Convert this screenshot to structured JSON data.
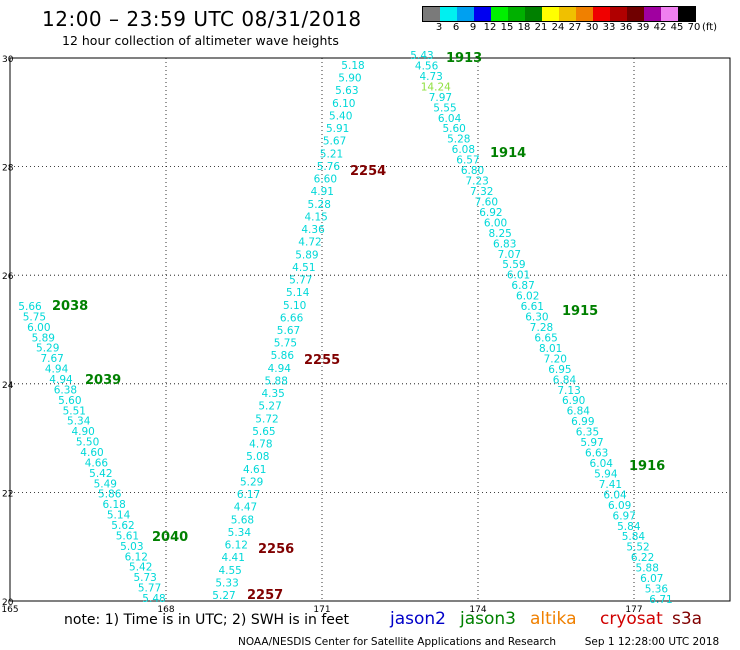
{
  "header": {
    "title": "12:00 – 23:59 UTC 08/31/2018",
    "subtitle": "12 hour collection of altimeter wave heights"
  },
  "legend": {
    "colors": [
      "#7a7a7a",
      "#00f0f0",
      "#00a0f0",
      "#0000f0",
      "#00f000",
      "#00b000",
      "#008000",
      "#ffff00",
      "#f0c000",
      "#f08000",
      "#f00000",
      "#b00000",
      "#700000",
      "#a000a0",
      "#f080f0",
      "#000000"
    ],
    "labels": [
      "3",
      "6",
      "9",
      "12",
      "15",
      "18",
      "21",
      "24",
      "27",
      "30",
      "33",
      "36",
      "39",
      "42",
      "45",
      "70"
    ],
    "unit": "(ft)"
  },
  "axes": {
    "x_ticks": [
      "165",
      "168",
      "171",
      "174",
      "177"
    ],
    "y_ticks": [
      "20",
      "22",
      "24",
      "26",
      "28",
      "30"
    ]
  },
  "passes": {
    "p1913": {
      "label": "1913",
      "color": "#008000"
    },
    "p1914": {
      "label": "1914",
      "color": "#008000"
    },
    "p1915": {
      "label": "1915",
      "color": "#008000"
    },
    "p1916": {
      "label": "1916",
      "color": "#008000"
    },
    "p2038": {
      "label": "2038",
      "color": "#008000"
    },
    "p2039": {
      "label": "2039",
      "color": "#008000"
    },
    "p2040": {
      "label": "2040",
      "color": "#008000"
    },
    "p2254": {
      "label": "2254",
      "color": "#800000"
    },
    "p2255": {
      "label": "2255",
      "color": "#800000"
    },
    "p2256": {
      "label": "2256",
      "color": "#800000"
    },
    "p2257": {
      "label": "2257",
      "color": "#800000"
    }
  },
  "tracks": {
    "jason3_right": {
      "color": "#00d8d8",
      "values": [
        "5.43",
        "4.56",
        "4.73",
        "14.24",
        "7.97",
        "5.55",
        "6.04",
        "5.60",
        "5.28",
        "6.08",
        "6.57",
        "6.80",
        "7.23",
        "7.32",
        "7.60",
        "6.92",
        "6.00",
        "8.25",
        "6.83",
        "7.07",
        "5.59",
        "6.01",
        "6.87",
        "6.02",
        "6.61",
        "6.30",
        "7.28",
        "6.65",
        "8.01",
        "7.20",
        "6.95",
        "6.84",
        "7.13",
        "6.90",
        "6.84",
        "6.99",
        "6.35",
        "5.97",
        "6.63",
        "6.04",
        "5.94",
        "7.41",
        "6.04",
        "6.09",
        "6.97",
        "5.84",
        "5.84",
        "5.52",
        "6.22",
        "5.88",
        "6.07",
        "5.36",
        "6.71"
      ],
      "special_index": 3,
      "special_color": "#90e040"
    },
    "cryosat_mid": {
      "color": "#00d8d8",
      "values": [
        "5.18",
        "5.90",
        "5.63",
        "6.10",
        "5.40",
        "5.91",
        "5.67",
        "5.21",
        "5.76",
        "6.60",
        "4.91",
        "5.28",
        "4.15",
        "4.36",
        "4.72",
        "5.89",
        "4.51",
        "5.77",
        "5.14",
        "5.10",
        "6.66",
        "5.67",
        "5.75",
        "5.86",
        "4.94",
        "5.88",
        "4.35",
        "5.27",
        "5.72",
        "5.65",
        "4.78",
        "5.08",
        "4.61",
        "5.29",
        "6.17",
        "4.47",
        "5.68",
        "5.34",
        "6.12",
        "4.41",
        "4.55",
        "5.33",
        "5.27"
      ]
    },
    "jason3_left": {
      "color": "#00d8d8",
      "values": [
        "5.66",
        "5.75",
        "6.00",
        "5.89",
        "5.29",
        "7.67",
        "4.94",
        "4.94",
        "6.38",
        "5.60",
        "5.51",
        "5.34",
        "4.90",
        "5.50",
        "4.60",
        "4.66",
        "5.42",
        "5.49",
        "5.86",
        "6.18",
        "5.14",
        "5.62",
        "5.61",
        "5.03",
        "6.12",
        "5.42",
        "5.73",
        "5.77",
        "5.48"
      ]
    }
  },
  "notes": {
    "text": "note:  1) Time is in UTC;  2) SWH is in feet"
  },
  "satellites": [
    {
      "name": "jason2",
      "color": "#0000c8"
    },
    {
      "name": "jason3",
      "color": "#008000"
    },
    {
      "name": "altika",
      "color": "#f08000"
    },
    {
      "name": "cryosat",
      "color": "#d00000"
    },
    {
      "name": "s3a",
      "color": "#800000"
    }
  ],
  "footer": {
    "center": "NOAA/NESDIS Center for Satellite Applications and Research",
    "timestamp": "Sep  1 12:28:00 UTC 2018"
  }
}
